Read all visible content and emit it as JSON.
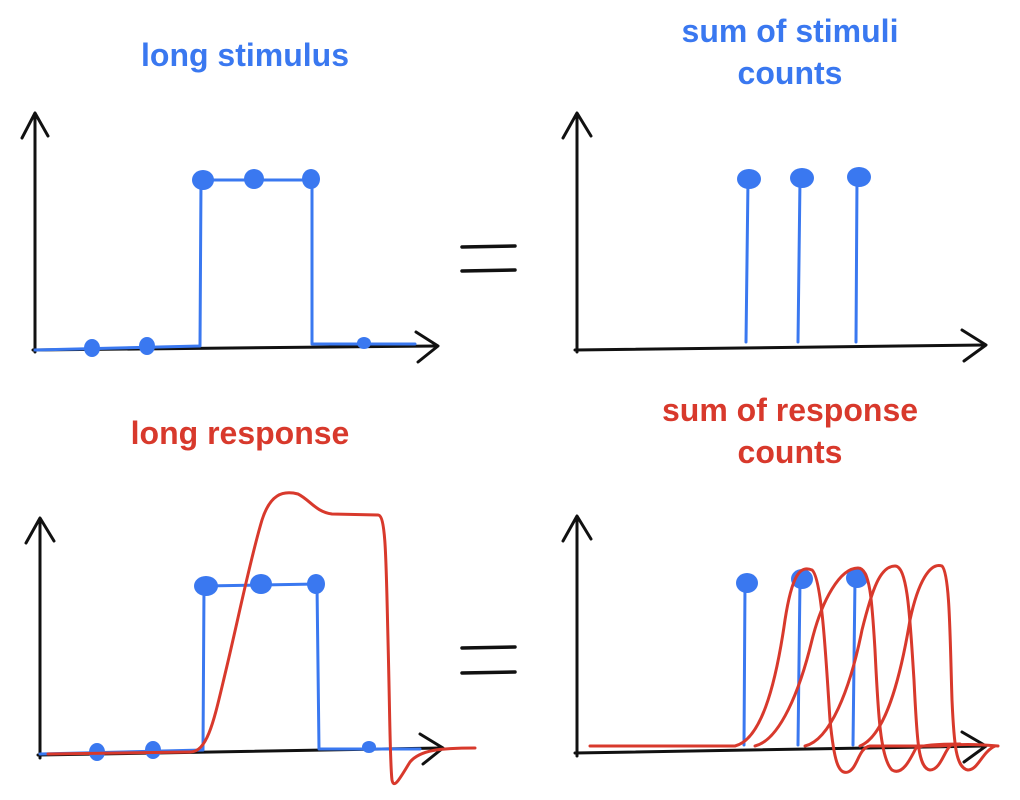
{
  "titles": {
    "top_left": "long stimulus",
    "top_right_line1": "sum of stimuli",
    "top_right_line2": "counts",
    "bottom_left": "long response",
    "bottom_right_line1": "sum of response",
    "bottom_right_line2": "counts"
  },
  "colors": {
    "stimulus": "#3a78f0",
    "response": "#d8392c",
    "axis": "#111111"
  },
  "icons": {
    "equals_sign": "equals-icon"
  }
}
